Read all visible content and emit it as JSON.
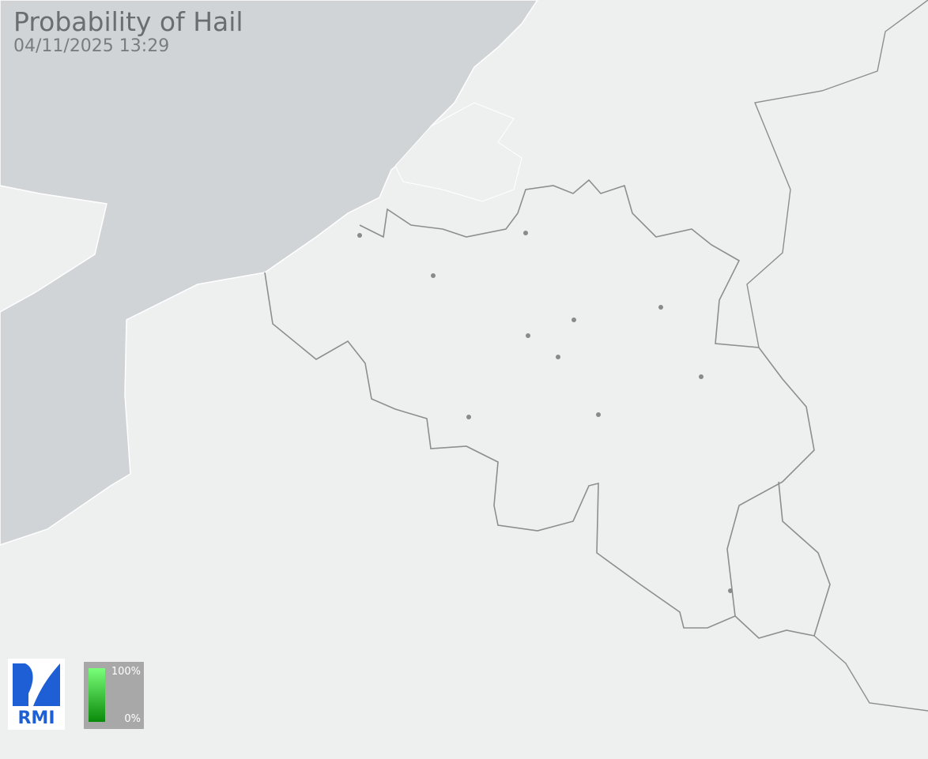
{
  "header": {
    "title": "Probability of Hail",
    "timestamp": "04/11/2025 13:29"
  },
  "legend": {
    "max_label": "100%",
    "min_label": "0%",
    "color_max": "#7aff7a",
    "color_min": "#0a8a0a"
  },
  "logo": {
    "text": "RMI",
    "color": "#1f5fd6"
  },
  "colors": {
    "land": "#eef0ef",
    "sea": "#d1d4d6",
    "border": "#8c8e90",
    "city": "#8a8a8a"
  }
}
